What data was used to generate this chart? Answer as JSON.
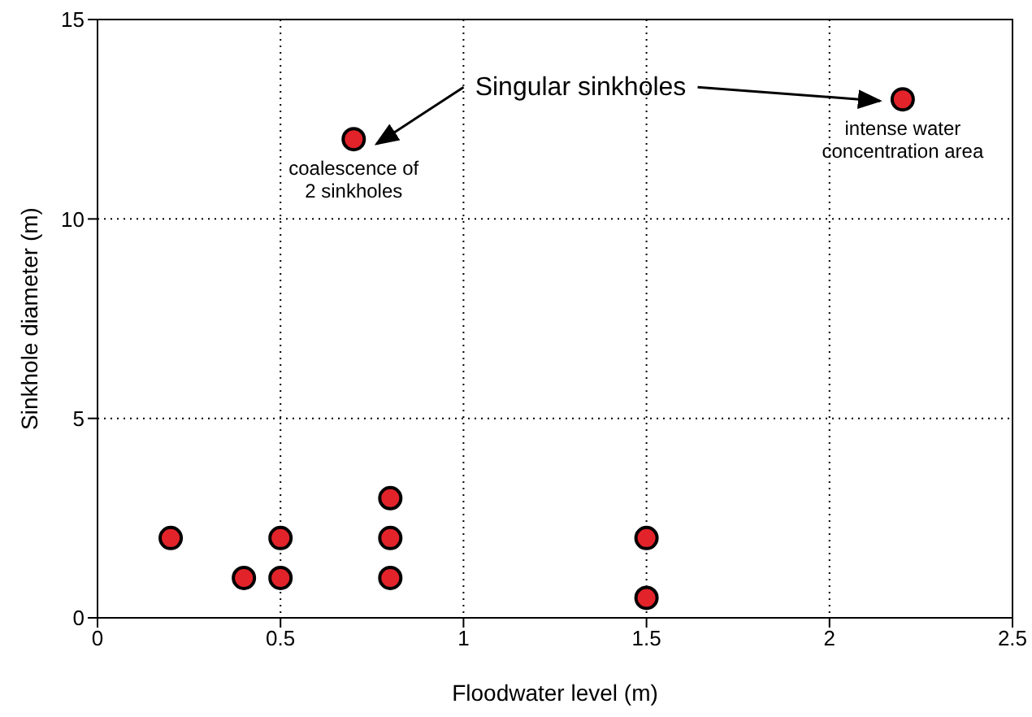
{
  "chart_data": {
    "type": "scatter",
    "xlabel": "Floodwater level (m)",
    "ylabel": "Sinkhole diameter (m)",
    "x": [
      0.2,
      0.4,
      0.5,
      0.5,
      0.7,
      0.8,
      0.8,
      0.8,
      1.5,
      1.5,
      2.2
    ],
    "values": [
      2,
      1,
      2,
      1,
      12,
      3,
      2,
      1,
      2,
      0.5,
      13
    ],
    "color": "#e3232a",
    "marker": "circle",
    "xlim": [
      0,
      2.5
    ],
    "xticks": [
      0,
      0.5,
      1,
      1.5,
      2,
      2.5
    ],
    "ylim": [
      0,
      15
    ],
    "yticks": [
      0,
      5,
      10,
      15
    ],
    "grid": true,
    "annotations": [
      "Singular sinkholes",
      {
        "text": "coalescence of\n2 sinkholes",
        "x": 0.7,
        "y": 12
      },
      {
        "text": "intense water\nconcentration area",
        "x": 2.2,
        "y": 13
      }
    ]
  }
}
